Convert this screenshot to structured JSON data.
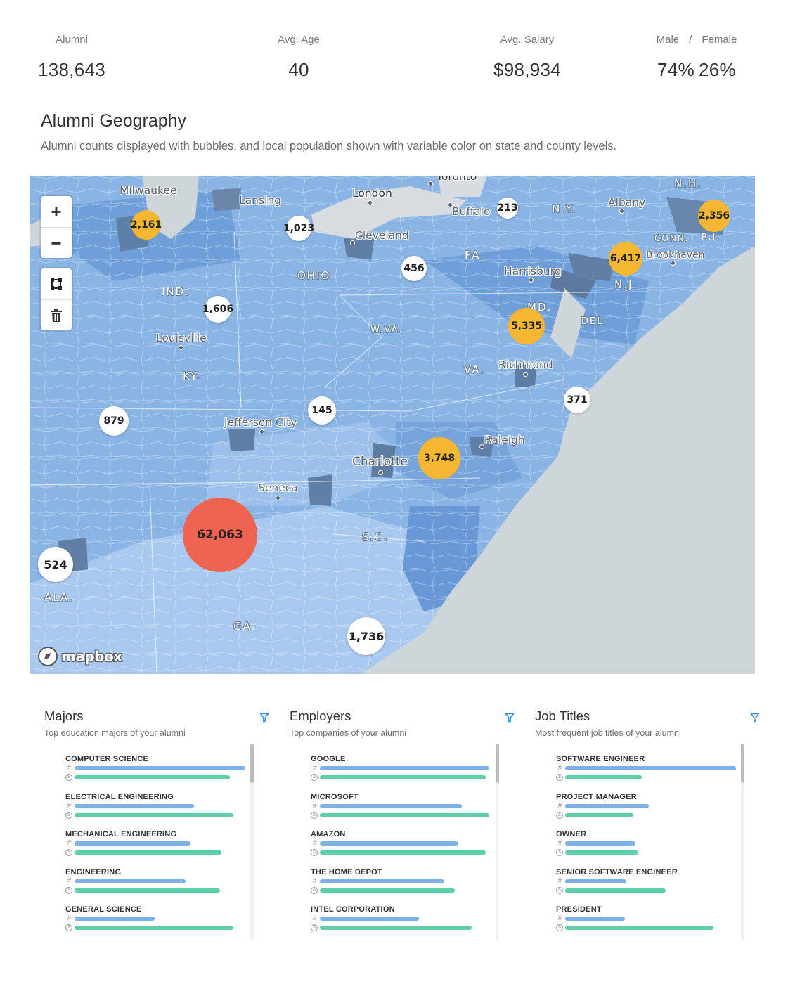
{
  "stats": {
    "alumni": {
      "label": "Alumni",
      "value": "138,643"
    },
    "age": {
      "label": "Avg. Age",
      "value": "40"
    },
    "salary": {
      "label": "Avg. Salary",
      "value": "$98,934"
    },
    "gender": {
      "male_label": "Male",
      "separator": "/",
      "female_label": "Female",
      "male_value": "74%",
      "female_value": "26%"
    }
  },
  "geography": {
    "title": "Alumni Geography",
    "subtitle": "Alumni counts displayed with bubbles, and local population shown with variable color on state and county levels."
  },
  "map": {
    "controls": {
      "zoom_in": "+",
      "zoom_out": "−"
    },
    "attribution": "mapbox",
    "cities": {
      "milwaukee": "Milwaukee",
      "lansing": "Lansing",
      "london": "London",
      "toronto": "Toronto",
      "buffalo": "Buffalo",
      "albany": "Albany",
      "cleveland": "Cleveland",
      "brookhaven": "Brookhaven",
      "harrisburg": "Harrisburg",
      "louisville": "Louisville",
      "richmond": "Richmond",
      "jefferson_city": "Jefferson City",
      "raleigh": "Raleigh",
      "charlotte": "Charlotte",
      "seneca": "Seneca"
    },
    "states": {
      "nh": "N.H.",
      "ny": "N.Y.",
      "conn": "CONN.",
      "ri": "R.I.",
      "pa": "PA.",
      "nj": "N.J.",
      "ohio": "OHIO",
      "ind": "IND.",
      "md": "MD.",
      "del": "DEL.",
      "wva": "W.VA.",
      "va": "VA.",
      "ky": "KY.",
      "sc": "S.C.",
      "ala": "ALA.",
      "ga": "GA."
    },
    "bubbles": {
      "b2161": "2,161",
      "b1023": "1,023",
      "b213": "213",
      "b2356": "2,356",
      "b6417": "6,417",
      "b456": "456",
      "b1606": "1,606",
      "b5335": "5,335",
      "b371": "371",
      "b879": "879",
      "b145": "145",
      "b3748": "3,748",
      "b62063": "62,063",
      "b524": "524",
      "b1736": "1,736"
    },
    "colors": {
      "white_bubble": "#ffffff",
      "gold_bubble": "#f5b731",
      "red_bubble": "#ef6450"
    }
  },
  "panels": {
    "majors": {
      "title": "Majors",
      "subtitle": "Top education majors of your alumni",
      "items": [
        {
          "name": "COMPUTER SCIENCE",
          "count": 1.0,
          "salary": 0.91
        },
        {
          "name": "ELECTRICAL ENGINEERING",
          "count": 0.7,
          "salary": 0.93
        },
        {
          "name": "MECHANICAL ENGINEERING",
          "count": 0.68,
          "salary": 0.86
        },
        {
          "name": "ENGINEERING",
          "count": 0.65,
          "salary": 0.85
        },
        {
          "name": "GENERAL SCIENCE",
          "count": 0.47,
          "salary": 0.93
        }
      ]
    },
    "employers": {
      "title": "Employers",
      "subtitle": "Top companies of your alumni",
      "items": [
        {
          "name": "GOOGLE",
          "count": 0.99,
          "salary": 0.97
        },
        {
          "name": "MICROSOFT",
          "count": 0.83,
          "salary": 0.99
        },
        {
          "name": "AMAZON",
          "count": 0.81,
          "salary": 0.97
        },
        {
          "name": "THE HOME DEPOT",
          "count": 0.73,
          "salary": 0.79
        },
        {
          "name": "INTEL CORPORATION",
          "count": 0.58,
          "salary": 0.89
        }
      ]
    },
    "job_titles": {
      "title": "Job Titles",
      "subtitle": "Most frequent job titles of your alumni",
      "items": [
        {
          "name": "SOFTWARE ENGINEER",
          "count": 1.0,
          "salary": 0.45
        },
        {
          "name": "PROJECT MANAGER",
          "count": 0.49,
          "salary": 0.4
        },
        {
          "name": "OWNER",
          "count": 0.41,
          "salary": 0.43
        },
        {
          "name": "SENIOR SOFTWARE ENGINEER",
          "count": 0.36,
          "salary": 0.59
        },
        {
          "name": "PRESIDENT",
          "count": 0.35,
          "salary": 0.87
        }
      ]
    },
    "icons": {
      "count": "#",
      "salary": "$"
    },
    "colors": {
      "count_bar": "#7eb1e5",
      "salary_bar": "#5fcfa9"
    }
  }
}
